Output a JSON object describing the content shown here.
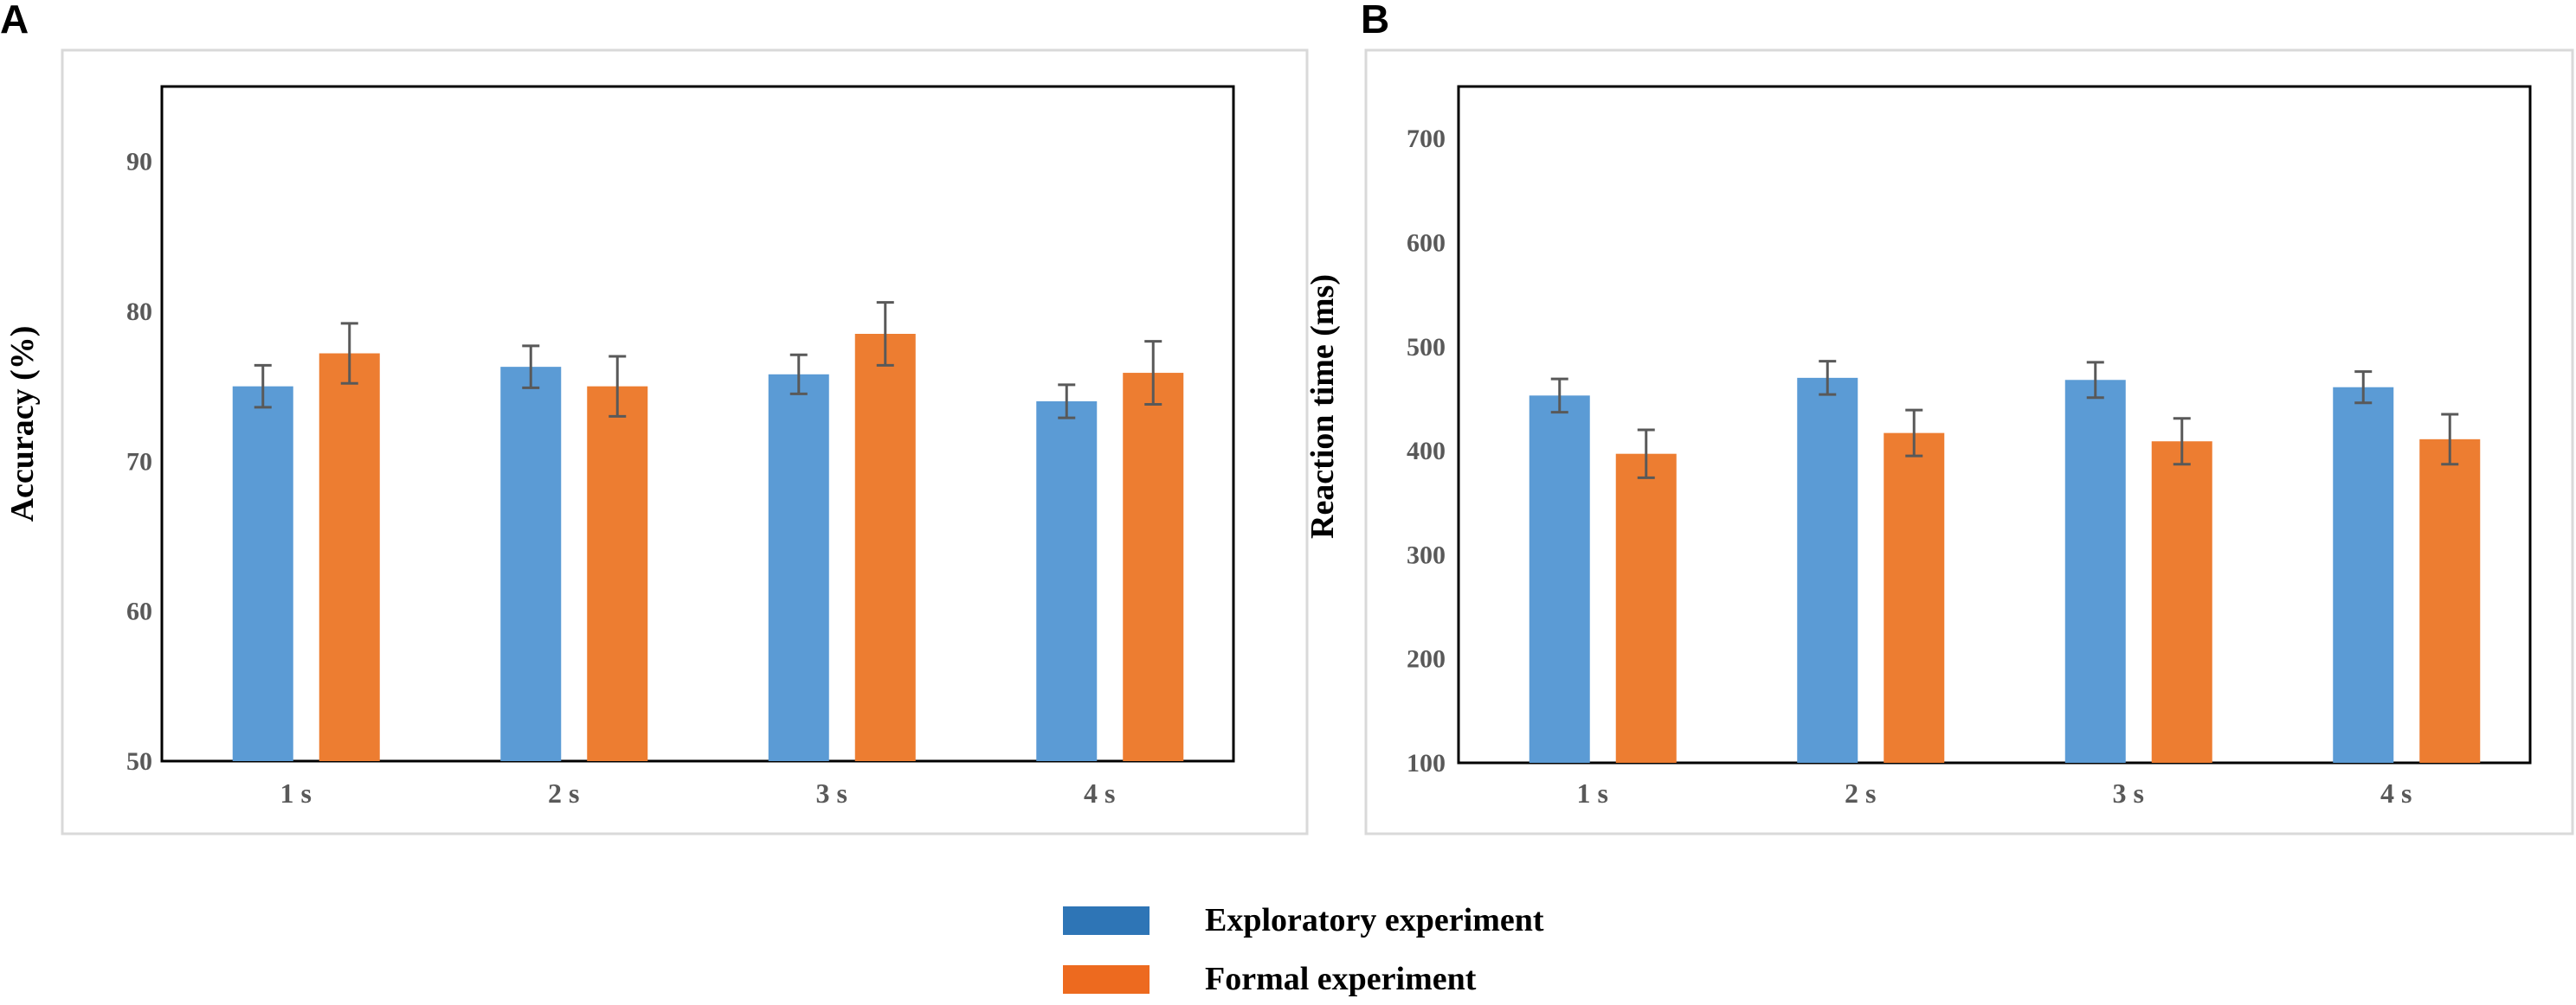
{
  "chart_data": [
    {
      "panel": "A",
      "type": "bar",
      "categories": [
        "1 s",
        "2 s",
        "3 s",
        "4 s"
      ],
      "series": [
        {
          "name": "Exploratory experiment",
          "values": [
            75.0,
            76.3,
            75.8,
            74.0
          ],
          "errors": [
            1.4,
            1.4,
            1.3,
            1.1
          ]
        },
        {
          "name": "Formal experiment",
          "values": [
            77.2,
            75.0,
            78.5,
            75.9
          ],
          "errors": [
            2.0,
            2.0,
            2.1,
            2.1
          ]
        }
      ],
      "ylabel": "Accuracy  (%)",
      "ylim": [
        50,
        95
      ],
      "yticks": [
        50,
        60,
        70,
        80,
        90
      ]
    },
    {
      "panel": "B",
      "type": "bar",
      "categories": [
        "1 s",
        "2 s",
        "3 s",
        "4 s"
      ],
      "series": [
        {
          "name": "Exploratory experiment",
          "values": [
            453,
            470,
            468,
            461
          ],
          "errors": [
            16,
            16,
            17,
            15
          ]
        },
        {
          "name": "Formal experiment",
          "values": [
            397,
            417,
            409,
            411
          ],
          "errors": [
            23,
            22,
            22,
            24
          ]
        }
      ],
      "ylabel": "Reaction time (ms)",
      "ylim": [
        100,
        750
      ],
      "yticks": [
        100,
        200,
        300,
        400,
        500,
        600,
        700
      ]
    }
  ],
  "legend": [
    {
      "label": "Exploratory experiment",
      "color": "#2E75B6"
    },
    {
      "label": "Formal experiment",
      "color": "#ED6A1F"
    }
  ],
  "colors": {
    "exploratory": "#5B9BD5",
    "formal": "#ED7D31",
    "error_bar": "#595959"
  }
}
